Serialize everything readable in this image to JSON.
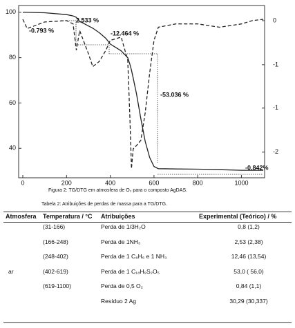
{
  "chart_data": {
    "type": "line",
    "x": [
      0,
      20,
      100,
      200,
      230,
      245,
      260,
      300,
      320,
      350,
      380,
      400,
      450,
      480,
      490,
      497,
      505,
      520,
      540,
      560,
      580,
      600,
      620,
      700,
      800,
      900,
      1000,
      1050,
      1100
    ],
    "series": [
      {
        "name": "TG",
        "color": "#222222",
        "values": [
          100,
          100,
          99.8,
          99,
          98.4,
          97.8,
          96,
          94,
          93,
          91,
          88.5,
          86,
          83,
          80,
          77,
          74.5,
          71,
          64,
          53,
          43,
          36,
          32,
          31,
          30.9,
          30.8,
          30.6,
          30.3,
          30.3,
          30.3
        ]
      },
      {
        "name": "DTG",
        "color": "#222222",
        "axis": "y2",
        "values": [
          0.02,
          -0.12,
          -0.02,
          0,
          -0.05,
          -0.45,
          -0.15,
          -0.5,
          -0.7,
          -0.62,
          -0.45,
          -0.3,
          -0.25,
          -0.6,
          -1.5,
          -2.25,
          -1.95,
          -1.9,
          -1.82,
          -1.4,
          -0.8,
          -0.3,
          -0.1,
          -0.05,
          -0.05,
          -0.1,
          -0.05,
          0,
          0.02
        ]
      }
    ],
    "xlim": [
      -19,
      1106
    ],
    "xticks": [
      0,
      200,
      400,
      600,
      800,
      1000
    ],
    "ylim": [
      27,
      103
    ],
    "yticks": [
      40,
      60,
      80,
      100
    ],
    "y2lim": [
      -2.39,
      0.23
    ],
    "y2ticks": [
      0,
      {
        "value": -0.67,
        "label": "-1"
      },
      {
        "value": -1.33,
        "label": "-1"
      },
      -2
    ],
    "annotations": [
      "2.533 %",
      "-0.793 %",
      "-12.464 %",
      "-53.036 %",
      "-0.842%"
    ]
  },
  "figure_caption": "Figura 2: TG/DTG em atmosfera de O₂ para o composto AgDAS.",
  "table": {
    "caption": "Tabela 2: Atribuições de perdas de massa para a TG/DTG.",
    "header": [
      "Atmosfera",
      "Temperatura / °C",
      "Atribuições",
      "Experimental (Teórico) / %"
    ],
    "atmosphere": "ar",
    "rows": [
      [
        "(31-166)",
        "Perda de 1/3H₂O",
        "0,8 (1,2)"
      ],
      [
        "(166-248)",
        "Perda de 1NH₃",
        "2,53 (2,38)"
      ],
      [
        "(248-402)",
        "Perda de 1 C₈H₆ e 1 NH₃",
        "12,46 (13,54)"
      ],
      [
        "(402-619)",
        "Perda de 1 C₁₈H₉S₂O₅",
        "53,0 ( 56,0)"
      ],
      [
        "(619-1100)",
        "Perda de 0,5 O₂",
        "0,84 (1,1)"
      ],
      [
        "",
        "Resíduo 2 Ag",
        "30,29 (30,337)"
      ]
    ]
  }
}
